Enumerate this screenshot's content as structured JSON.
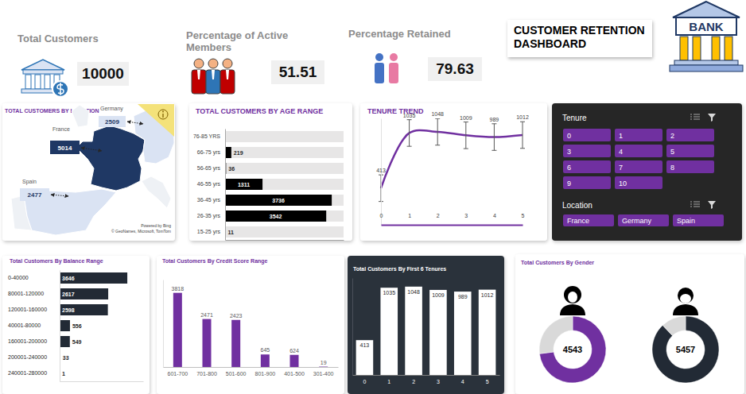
{
  "title": "CUSTOMER RETENTION DASHBOARD",
  "logo_text": "BANK",
  "kpis": [
    {
      "label": "Total Customers",
      "value": 10000
    },
    {
      "label": "Percentage of Active Members",
      "value": 51.51
    },
    {
      "label": "Percentage Retained",
      "value": 79.63
    }
  ],
  "chart_data": [
    {
      "type": "map",
      "title": "TOTAL CUSTOMERS BY LOCATION",
      "categories": [
        "France",
        "Germany",
        "Spain"
      ],
      "values": [
        5014,
        2509,
        2477
      ],
      "colors": [
        "#1f3864",
        "#dae3f3",
        "#dae3f3"
      ],
      "data_labels": true,
      "attribution": [
        "Powered by Bing",
        "© GeoNames, Microsoft, TomTom"
      ]
    },
    {
      "type": "bar",
      "orientation": "horizontal",
      "title": "TOTAL CUSTOMERS BY AGE RANGE",
      "categories": [
        "76-85 YRS",
        "66-75 yrs",
        "56-65 yrs",
        "46-55 yrs",
        "36-45 yrs",
        "26-35 yrs",
        "15-25 yrs"
      ],
      "values": [
        22,
        219,
        36,
        1311,
        3736,
        3542,
        11
      ],
      "value_labels": [
        null,
        "219",
        "36",
        "1311",
        "3736",
        "3542",
        "11"
      ],
      "color": "#000000",
      "xlim": [
        0,
        4150
      ],
      "tick_labels": "y",
      "data_labels": true
    },
    {
      "type": "line",
      "title": "TENURE TREND",
      "x": [
        0,
        1,
        2,
        3,
        4,
        5
      ],
      "values": [
        413,
        1035,
        1048,
        1009,
        989,
        1012
      ],
      "errors": [
        150,
        150,
        150,
        150,
        150,
        150
      ],
      "color": "#7030a0",
      "xlim": [
        0,
        5
      ],
      "xticks": [
        0,
        1,
        2,
        3,
        4,
        5
      ],
      "ylim": [
        0,
        1200
      ],
      "tick_labels": "x",
      "data_labels": true
    },
    {
      "type": "bar",
      "orientation": "horizontal",
      "title": "Total Customers By Balance Range",
      "categories": [
        "0-40000",
        "80001-120000",
        "120001-160000",
        "40001-80000",
        "160001-200000",
        "200001-240000",
        "240001-280000"
      ],
      "values": [
        3646,
        2617,
        2598,
        556,
        549,
        33,
        1
      ],
      "color": "#222a35",
      "xlim": [
        0,
        4500
      ],
      "tick_labels": "y",
      "data_labels": true
    },
    {
      "type": "bar",
      "title": "Total Customers By Credit Score Range",
      "categories": [
        "601-700",
        "701-800",
        "501-600",
        "801-900",
        "401-500",
        "301-400"
      ],
      "values": [
        3818,
        2471,
        2423,
        645,
        624,
        19
      ],
      "color": "#7030a0",
      "ylim": [
        0,
        4500
      ],
      "tick_labels": "x",
      "data_labels": true
    },
    {
      "type": "bar",
      "title": "Total Customers By First 6 Tenures",
      "categories": [
        "0",
        "1",
        "2",
        "3",
        "4",
        "5"
      ],
      "values": [
        413,
        1035,
        1048,
        1009,
        989,
        1012
      ],
      "color": "#ffffff",
      "ylim": [
        0,
        1150
      ],
      "tick_labels": "x",
      "data_labels": true
    },
    {
      "type": "donut",
      "title": "Total Customers By Gender",
      "series": [
        {
          "values": [
            4543,
            1680
          ],
          "colors": [
            "#7030a0",
            "#d9d9d9"
          ]
        },
        {
          "values": [
            5457,
            745
          ],
          "colors": [
            "#222a35",
            "#d9d9d9"
          ]
        }
      ]
    }
  ],
  "slicers": [
    {
      "title": "Tenure",
      "items": [
        "0",
        "1",
        "2",
        "3",
        "4",
        "5",
        "6",
        "7",
        "8",
        "9",
        "10"
      ]
    },
    {
      "title": "Location",
      "items": [
        "France",
        "Germany",
        "Spain"
      ]
    }
  ]
}
